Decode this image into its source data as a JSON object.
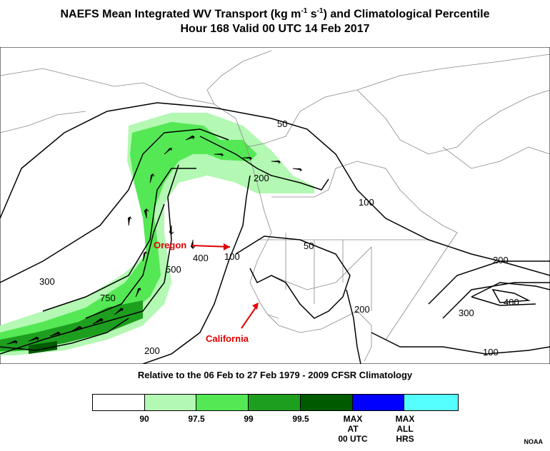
{
  "title": {
    "line1_prefix": "NAEFS Mean Integrated WV Transport (kg m",
    "sup1": "-1",
    "line1_mid": " s",
    "sup2": "-1",
    "line1_suffix": ") and Climatological Percentile",
    "line2": "Hour 168 Valid 00 UTC 14 Feb 2017"
  },
  "subtitle": "Relative to the 06 Feb to 27 Feb 1979 - 2009 CFSR Climatology",
  "contour_labels": [
    "50",
    "200",
    "100",
    "300",
    "750",
    "500",
    "400",
    "100",
    "50",
    "200",
    "200",
    "400",
    "300",
    "100",
    "200"
  ],
  "annotations": {
    "oregon": "Oregon",
    "california": "California"
  },
  "legend": {
    "colors": [
      "#ffffff",
      "#b3f8b3",
      "#55e855",
      "#1e9e1e",
      "#005a00",
      "#0000ff",
      "#55ffff"
    ],
    "labels": [
      "90",
      "97.5",
      "99",
      "99.5",
      "MAX\nAT\n00 UTC",
      "MAX\nALL\nHRS"
    ]
  },
  "credit": "NOAA",
  "colors": {
    "shading_light": "#b3f8b3",
    "shading_mid": "#55e855",
    "shading_dark": "#1e9e1e",
    "shading_darkest": "#005a00",
    "annotation": "#e00000"
  }
}
